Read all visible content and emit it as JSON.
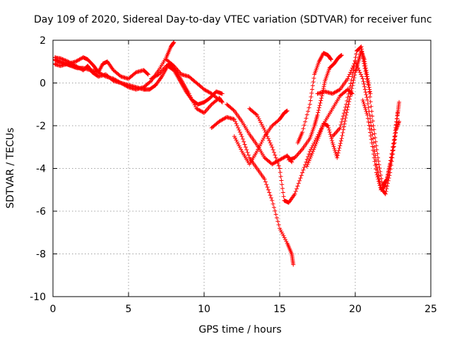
{
  "chart_data": {
    "type": "scatter",
    "title": "Day 109 of 2020, Sidereal Day-to-day VTEC variation (SDTVAR) for receiver func",
    "xlabel": "GPS time / hours",
    "ylabel": "SDTVAR / TECUs",
    "xlim": [
      0,
      25
    ],
    "ylim": [
      -10,
      2
    ],
    "xticks": [
      0,
      5,
      10,
      15,
      20,
      25
    ],
    "yticks": [
      -10,
      -8,
      -6,
      -4,
      -2,
      0,
      2
    ],
    "grid": true,
    "marker": "+",
    "color": "#ff0000",
    "series": [
      {
        "name": "s1",
        "points": [
          [
            0.0,
            1.1
          ],
          [
            0.4,
            1.0
          ],
          [
            0.8,
            0.9
          ],
          [
            1.2,
            0.8
          ],
          [
            1.6,
            0.7
          ],
          [
            2.0,
            0.7
          ],
          [
            2.5,
            0.6
          ],
          [
            3.0,
            0.5
          ],
          [
            3.5,
            0.3
          ],
          [
            4.0,
            0.2
          ],
          [
            4.5,
            0.0
          ],
          [
            5.0,
            -0.1
          ],
          [
            5.5,
            -0.2
          ],
          [
            6.0,
            -0.3
          ],
          [
            6.4,
            -0.3
          ],
          [
            6.8,
            -0.1
          ],
          [
            7.2,
            0.3
          ],
          [
            7.6,
            0.8
          ],
          [
            8.0,
            0.6
          ],
          [
            8.4,
            0.1
          ],
          [
            8.8,
            -0.4
          ],
          [
            9.2,
            -0.8
          ],
          [
            9.6,
            -1.0
          ],
          [
            10.0,
            -0.9
          ],
          [
            10.4,
            -0.7
          ],
          [
            10.8,
            -0.4
          ],
          [
            11.2,
            -0.5
          ]
        ]
      },
      {
        "name": "s2",
        "points": [
          [
            0.0,
            1.2
          ],
          [
            0.5,
            1.15
          ],
          [
            1.0,
            1.0
          ],
          [
            1.5,
            0.8
          ],
          [
            2.0,
            0.6
          ],
          [
            2.3,
            0.8
          ],
          [
            2.6,
            0.5
          ],
          [
            3.0,
            0.3
          ],
          [
            3.5,
            0.4
          ],
          [
            4.0,
            0.1
          ],
          [
            4.5,
            0.0
          ],
          [
            5.0,
            -0.2
          ],
          [
            5.5,
            -0.3
          ],
          [
            6.0,
            -0.2
          ],
          [
            6.5,
            0.1
          ],
          [
            7.0,
            0.6
          ],
          [
            7.5,
            1.2
          ],
          [
            7.8,
            1.7
          ],
          [
            8.0,
            1.9
          ]
        ]
      },
      {
        "name": "s3",
        "points": [
          [
            0.0,
            0.9
          ],
          [
            0.5,
            0.8
          ],
          [
            1.0,
            0.9
          ],
          [
            1.5,
            1.0
          ],
          [
            2.0,
            1.2
          ],
          [
            2.3,
            1.1
          ],
          [
            2.7,
            0.8
          ],
          [
            3.0,
            0.5
          ],
          [
            3.3,
            0.9
          ],
          [
            3.6,
            1.0
          ],
          [
            4.0,
            0.6
          ],
          [
            4.5,
            0.3
          ],
          [
            5.0,
            0.2
          ],
          [
            5.5,
            0.5
          ],
          [
            6.0,
            0.6
          ],
          [
            6.3,
            0.4
          ]
        ]
      },
      {
        "name": "s4",
        "points": [
          [
            6.5,
            0.2
          ],
          [
            7.0,
            0.4
          ],
          [
            7.5,
            0.8
          ],
          [
            7.8,
            0.9
          ],
          [
            8.2,
            0.5
          ],
          [
            8.6,
            0.0
          ],
          [
            9.0,
            -0.5
          ],
          [
            9.5,
            -1.2
          ],
          [
            10.0,
            -1.4
          ],
          [
            10.5,
            -1.0
          ],
          [
            11.0,
            -0.7
          ],
          [
            11.2,
            -0.9
          ]
        ]
      },
      {
        "name": "s5",
        "points": [
          [
            7.5,
            1.1
          ],
          [
            8.0,
            0.8
          ],
          [
            8.5,
            0.4
          ],
          [
            9.0,
            0.3
          ],
          [
            9.5,
            0.0
          ],
          [
            10.0,
            -0.3
          ],
          [
            10.5,
            -0.5
          ],
          [
            11.0,
            -0.8
          ]
        ]
      },
      {
        "name": "s6",
        "points": [
          [
            11.5,
            -1.0
          ],
          [
            12.0,
            -1.3
          ],
          [
            12.5,
            -1.8
          ],
          [
            13.0,
            -2.4
          ],
          [
            13.5,
            -2.9
          ],
          [
            14.0,
            -3.5
          ],
          [
            14.5,
            -3.8
          ],
          [
            15.0,
            -3.6
          ],
          [
            15.5,
            -3.4
          ],
          [
            15.8,
            -3.7
          ]
        ]
      },
      {
        "name": "s7",
        "points": [
          [
            10.5,
            -2.1
          ],
          [
            11.0,
            -1.8
          ],
          [
            11.5,
            -1.6
          ],
          [
            12.0,
            -1.7
          ],
          [
            12.5,
            -2.5
          ],
          [
            13.0,
            -3.5
          ],
          [
            13.5,
            -4.0
          ],
          [
            14.0,
            -4.5
          ],
          [
            14.5,
            -5.5
          ],
          [
            15.0,
            -6.8
          ],
          [
            15.5,
            -7.5
          ],
          [
            15.8,
            -8.0
          ],
          [
            15.9,
            -8.5
          ]
        ]
      },
      {
        "name": "s8",
        "points": [
          [
            12.0,
            -2.5
          ],
          [
            12.5,
            -3.2
          ],
          [
            13.0,
            -3.8
          ],
          [
            13.5,
            -3.2
          ],
          [
            14.0,
            -2.5
          ],
          [
            14.5,
            -2.0
          ],
          [
            15.0,
            -1.7
          ],
          [
            15.3,
            -1.4
          ],
          [
            15.5,
            -1.3
          ]
        ]
      },
      {
        "name": "s9",
        "points": [
          [
            13.0,
            -1.2
          ],
          [
            13.5,
            -1.5
          ],
          [
            14.0,
            -2.2
          ],
          [
            14.5,
            -3.0
          ],
          [
            15.0,
            -4.0
          ],
          [
            15.3,
            -5.5
          ],
          [
            15.6,
            -5.6
          ],
          [
            16.0,
            -5.2
          ],
          [
            16.5,
            -4.2
          ],
          [
            17.0,
            -3.2
          ],
          [
            17.5,
            -2.5
          ],
          [
            18.0,
            -1.8
          ],
          [
            18.5,
            -1.2
          ],
          [
            19.0,
            -0.6
          ],
          [
            19.5,
            -0.3
          ],
          [
            19.8,
            -0.5
          ]
        ]
      },
      {
        "name": "s10",
        "points": [
          [
            15.6,
            -3.6
          ],
          [
            16.0,
            -3.5
          ],
          [
            16.5,
            -3.1
          ],
          [
            17.0,
            -2.6
          ],
          [
            17.3,
            -2.0
          ],
          [
            17.5,
            -1.5
          ],
          [
            17.8,
            -0.6
          ],
          [
            18.0,
            0.1
          ],
          [
            18.3,
            0.7
          ],
          [
            18.6,
            0.9
          ],
          [
            18.9,
            1.2
          ],
          [
            19.1,
            1.3
          ]
        ]
      },
      {
        "name": "s11",
        "points": [
          [
            16.2,
            -2.8
          ],
          [
            16.5,
            -2.3
          ],
          [
            17.0,
            -1.0
          ],
          [
            17.3,
            0.4
          ],
          [
            17.6,
            1.0
          ],
          [
            17.9,
            1.4
          ],
          [
            18.2,
            1.3
          ],
          [
            18.4,
            1.1
          ]
        ]
      },
      {
        "name": "s12",
        "points": [
          [
            16.8,
            -3.9
          ],
          [
            17.2,
            -3.2
          ],
          [
            17.6,
            -2.5
          ],
          [
            17.9,
            -1.9
          ],
          [
            18.2,
            -2.0
          ],
          [
            18.5,
            -2.8
          ],
          [
            18.8,
            -3.5
          ],
          [
            19.1,
            -2.6
          ],
          [
            19.4,
            -1.5
          ],
          [
            19.7,
            -0.5
          ],
          [
            20.0,
            0.5
          ],
          [
            20.2,
            1.0
          ],
          [
            20.4,
            1.5
          ],
          [
            20.6,
            1.1
          ],
          [
            20.8,
            0.3
          ],
          [
            21.0,
            -0.5
          ]
        ]
      },
      {
        "name": "s13",
        "points": [
          [
            17.5,
            -0.5
          ],
          [
            18.0,
            -0.4
          ],
          [
            18.5,
            -0.5
          ],
          [
            19.0,
            -0.3
          ],
          [
            19.5,
            0.2
          ],
          [
            20.0,
            1.0
          ],
          [
            20.5,
            0.2
          ],
          [
            20.8,
            -0.8
          ],
          [
            21.1,
            -2.2
          ],
          [
            21.4,
            -3.8
          ],
          [
            21.7,
            -4.9
          ],
          [
            22.0,
            -5.2
          ],
          [
            22.3,
            -4.2
          ],
          [
            22.6,
            -2.8
          ],
          [
            22.8,
            -1.5
          ],
          [
            22.9,
            -0.9
          ]
        ]
      },
      {
        "name": "s14",
        "points": [
          [
            18.5,
            -2.5
          ],
          [
            19.0,
            -2.1
          ],
          [
            19.4,
            -1.0
          ],
          [
            19.8,
            0.3
          ],
          [
            20.1,
            1.5
          ],
          [
            20.4,
            1.7
          ],
          [
            20.6,
            0.8
          ],
          [
            20.9,
            -0.2
          ],
          [
            21.2,
            -2.0
          ],
          [
            21.5,
            -3.5
          ],
          [
            21.8,
            -4.8
          ],
          [
            22.1,
            -4.5
          ],
          [
            22.4,
            -3.5
          ],
          [
            22.7,
            -2.2
          ],
          [
            22.9,
            -1.8
          ]
        ]
      },
      {
        "name": "s15",
        "points": [
          [
            20.5,
            -0.8
          ],
          [
            20.8,
            -1.5
          ],
          [
            21.1,
            -2.8
          ],
          [
            21.4,
            -4.2
          ],
          [
            21.7,
            -5.0
          ],
          [
            22.0,
            -4.8
          ],
          [
            22.3,
            -3.8
          ],
          [
            22.6,
            -2.5
          ],
          [
            22.8,
            -1.4
          ]
        ]
      }
    ]
  }
}
